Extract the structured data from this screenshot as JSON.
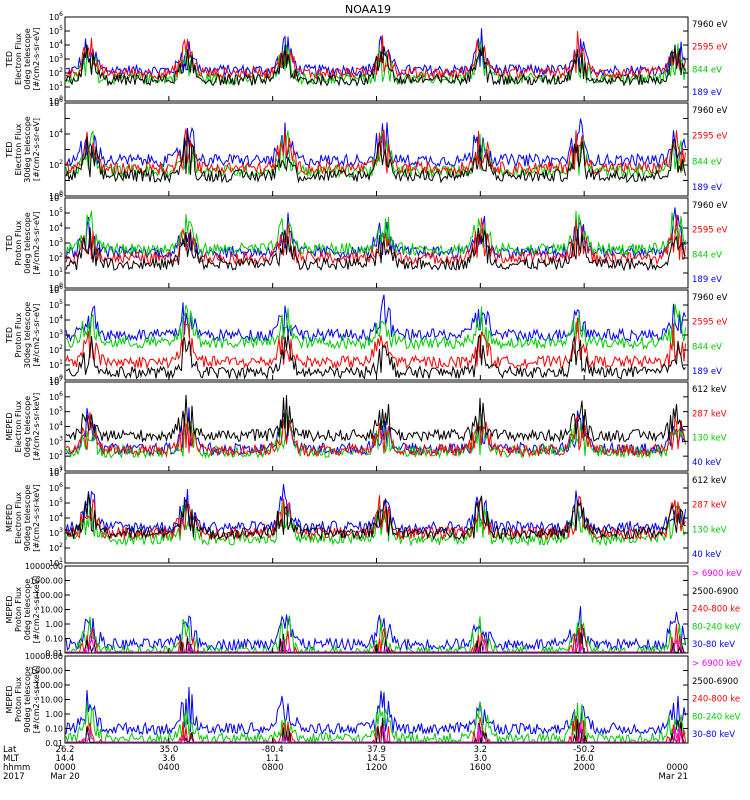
{
  "title": "NOAA19",
  "colors": {
    "blue": "#0000ff",
    "red": "#ff0000",
    "green": "#00cc00",
    "black": "#000000",
    "magenta": "#ff00ff"
  },
  "chart_data": [
    {
      "type": "line",
      "ylabel_lines": [
        "TED",
        "Electron Flux",
        "0deg telescope",
        "[#/cm2-s-sr-eV]"
      ],
      "scale": "log",
      "ylim": [
        1,
        1000000
      ],
      "ytick_labels": [
        "10^0",
        "10^1",
        "10^2",
        "10^3",
        "10^4",
        "10^5",
        "10^6"
      ],
      "series": [
        {
          "name": "7960 eV",
          "color": "black",
          "level": 1.5
        },
        {
          "name": "2595 eV",
          "color": "red",
          "level": 2.0
        },
        {
          "name": "844 eV",
          "color": "green",
          "level": 1.6
        },
        {
          "name": "189 eV",
          "color": "blue",
          "level": 2.2
        }
      ]
    },
    {
      "type": "line",
      "ylabel_lines": [
        "TED",
        "Electron Flux",
        "30deg telescope",
        "[#/cm2-s-sr-eV]"
      ],
      "scale": "log",
      "ylim": [
        1,
        1000000
      ],
      "ytick_labels": [
        "10^0",
        "",
        "10^2",
        "",
        "10^4",
        "",
        "10^6"
      ],
      "series": [
        {
          "name": "7960 eV",
          "color": "black",
          "level": 1.3
        },
        {
          "name": "2595 eV",
          "color": "red",
          "level": 1.8
        },
        {
          "name": "844 eV",
          "color": "green",
          "level": 1.6
        },
        {
          "name": "189 eV",
          "color": "blue",
          "level": 2.3
        }
      ]
    },
    {
      "type": "line",
      "ylabel_lines": [
        "TED",
        "Proton Flux",
        "0deg telescope",
        "[#/cm2-s-sr-eV]"
      ],
      "scale": "log",
      "ylim": [
        1,
        1000000
      ],
      "ytick_labels": [
        "10^0",
        "10^1",
        "10^2",
        "10^3",
        "10^4",
        "10^5",
        "10^6"
      ],
      "series": [
        {
          "name": "7960 eV",
          "color": "black",
          "level": 1.6
        },
        {
          "name": "2595 eV",
          "color": "red",
          "level": 2.0
        },
        {
          "name": "844 eV",
          "color": "green",
          "level": 2.6
        },
        {
          "name": "189 eV",
          "color": "blue",
          "level": 2.4
        }
      ]
    },
    {
      "type": "line",
      "ylabel_lines": [
        "TED",
        "Proton Flux",
        "30deg telescope",
        "[#/cm2-s-sr-eV]"
      ],
      "scale": "log",
      "ylim": [
        1,
        1000000
      ],
      "ytick_labels": [
        "10^0",
        "10^1",
        "10^2",
        "10^3",
        "10^4",
        "10^5",
        "10^6"
      ],
      "series": [
        {
          "name": "7960 eV",
          "color": "black",
          "level": 0.5
        },
        {
          "name": "2595 eV",
          "color": "red",
          "level": 1.2
        },
        {
          "name": "844 eV",
          "color": "green",
          "level": 2.5
        },
        {
          "name": "189 eV",
          "color": "blue",
          "level": 3.0
        }
      ]
    },
    {
      "type": "line",
      "ylabel_lines": [
        "MEPED",
        "Electron Flux",
        "0deg telescope",
        "[#/cm2-s-sr-keV]"
      ],
      "scale": "log",
      "ylim": [
        10,
        10000000
      ],
      "ytick_labels": [
        "10^1",
        "10^2",
        "10^3",
        "10^4",
        "10^5",
        "10^6",
        "10^7"
      ],
      "series": [
        {
          "name": "612 keV",
          "color": "black",
          "level": 2.4
        },
        {
          "name": "287 keV",
          "color": "red",
          "level": 1.4
        },
        {
          "name": "130 keV",
          "color": "green",
          "level": 1.3
        },
        {
          "name": "40 keV",
          "color": "blue",
          "level": 1.5
        }
      ]
    },
    {
      "type": "line",
      "ylabel_lines": [
        "MEPED",
        "Electron Flux",
        "90deg telescope",
        "[#/cm2-s-sr-keV]"
      ],
      "scale": "log",
      "ylim": [
        10,
        10000000
      ],
      "ytick_labels": [
        "10^1",
        "10^2",
        "10^3",
        "10^4",
        "10^5",
        "10^6",
        "10^7"
      ],
      "series": [
        {
          "name": "612 keV",
          "color": "black",
          "level": 2.0
        },
        {
          "name": "287 keV",
          "color": "red",
          "level": 2.0
        },
        {
          "name": "130 keV",
          "color": "green",
          "level": 1.6
        },
        {
          "name": "40 keV",
          "color": "blue",
          "level": 2.4
        }
      ]
    },
    {
      "type": "line",
      "ylabel_lines": [
        "MEPED",
        "Proton Flux",
        "0deg telescope",
        "[#/cm2-s-sr-keV]"
      ],
      "scale": "log",
      "ylim": [
        0.01,
        10000
      ],
      "ytick_labels": [
        "0.01",
        "0.10",
        "1.00",
        "10.00",
        "100.00",
        "1000.00",
        "10000.00"
      ],
      "series": [
        {
          "name": "> 6900 keV",
          "color": "magenta",
          "level": -1.5
        },
        {
          "name": "2500-6900",
          "color": "black",
          "level": -1.2
        },
        {
          "name": "240-800 ke",
          "color": "red",
          "level": -0.6
        },
        {
          "name": "80-240 keV",
          "color": "green",
          "level": 0.1
        },
        {
          "name": "30-80 keV",
          "color": "blue",
          "level": 0.6
        }
      ]
    },
    {
      "type": "line",
      "ylabel_lines": [
        "MEPED",
        "Proton Flux",
        "90deg telescope",
        "[#/cm2-s-sr-keV]"
      ],
      "scale": "log",
      "ylim": [
        0.01,
        10000
      ],
      "ytick_labels": [
        "0.01",
        "0.10",
        "1.00",
        "10.00",
        "100.00",
        "1000.00",
        "10000.00"
      ],
      "series": [
        {
          "name": "> 6900 keV",
          "color": "magenta",
          "level": -1.4
        },
        {
          "name": "2500-6900",
          "color": "black",
          "level": -1.0
        },
        {
          "name": "240-800 ke",
          "color": "red",
          "level": -0.6
        },
        {
          "name": "80-240 keV",
          "color": "green",
          "level": 0.3
        },
        {
          "name": "30-80 keV",
          "color": "blue",
          "level": 1.0
        }
      ]
    }
  ],
  "x_axis": {
    "row_labels": [
      "Lat",
      "MLT",
      "hhmm",
      "2017"
    ],
    "columns": [
      {
        "lat": "26.2",
        "mlt": "14.4",
        "hhmm": "0000",
        "date": "Mar 20"
      },
      {
        "lat": "35.0",
        "mlt": "3.6",
        "hhmm": "0400",
        "date": ""
      },
      {
        "lat": "-80.4",
        "mlt": "1.1",
        "hhmm": "0800",
        "date": ""
      },
      {
        "lat": "37.9",
        "mlt": "14.5",
        "hhmm": "1200",
        "date": ""
      },
      {
        "lat": "3.2",
        "mlt": "3.0",
        "hhmm": "1600",
        "date": ""
      },
      {
        "lat": "-50.2",
        "mlt": "16.0",
        "hhmm": "2000",
        "date": ""
      },
      {
        "lat": "",
        "mlt": "",
        "hhmm": "0000",
        "date": "Mar 21"
      }
    ]
  }
}
